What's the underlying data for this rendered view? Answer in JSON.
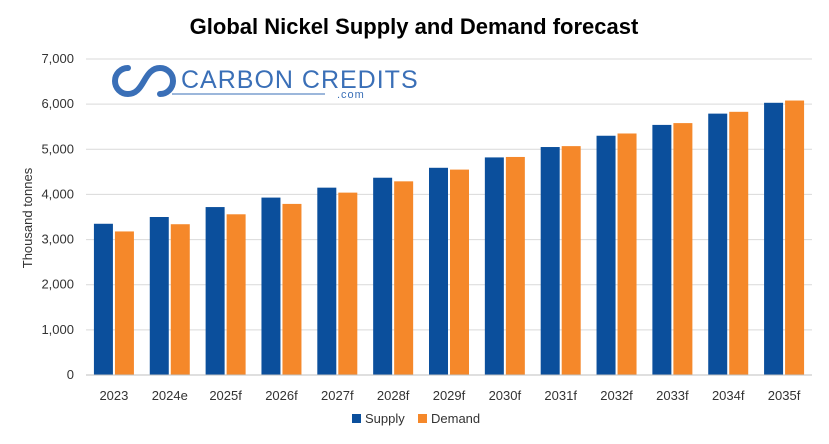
{
  "chart_data": {
    "type": "bar",
    "title": "Global Nickel Supply and Demand forecast",
    "ylabel": "Thousand tonnes",
    "xlabel": "",
    "ylim": [
      0,
      7000
    ],
    "yticks": [
      "0",
      "1,000",
      "2,000",
      "3,000",
      "4,000",
      "5,000",
      "6,000",
      "7,000"
    ],
    "grid": true,
    "legend_position": "bottom-center",
    "categories": [
      "2023",
      "2024e",
      "2025f",
      "2026f",
      "2027f",
      "2028f",
      "2029f",
      "2030f",
      "2031f",
      "2032f",
      "2033f",
      "2034f",
      "2035f"
    ],
    "series": [
      {
        "name": "Supply",
        "color": "#0b4f9c",
        "values": [
          3350,
          3500,
          3720,
          3930,
          4150,
          4370,
          4590,
          4820,
          5050,
          5300,
          5540,
          5790,
          6030
        ]
      },
      {
        "name": "Demand",
        "color": "#f5882a",
        "values": [
          3180,
          3340,
          3560,
          3790,
          4040,
          4290,
          4550,
          4830,
          5070,
          5350,
          5580,
          5830,
          6080
        ]
      }
    ]
  },
  "watermark": {
    "brand": "CARBON CREDITS",
    "domain": ".com",
    "brand_color": "#3a6fb7",
    "icon": "infinity-loop-logo-icon"
  }
}
